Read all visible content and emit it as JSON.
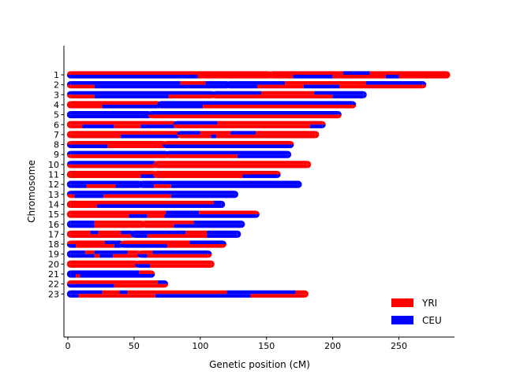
{
  "chart_data": {
    "type": "bar",
    "orientation": "horizontal",
    "xlabel": "Genetic position (cM)",
    "ylabel": "Chromosome",
    "xlim": [
      -3,
      292
    ],
    "xticks": [
      0,
      50,
      100,
      150,
      200,
      250
    ],
    "ylim": [
      0,
      26
    ],
    "grid": false,
    "legend_position": "lower-right",
    "colors": {
      "YRI": "#ff0000",
      "CEU": "#0000ff"
    },
    "series": [
      {
        "name": "YRI"
      },
      {
        "name": "CEU"
      }
    ],
    "chromosomes": [
      {
        "label": "1",
        "centromere": 153,
        "hapA": [
          [
            "YRI",
            2,
            153
          ],
          [
            "YRI",
            153,
            208
          ],
          [
            "CEU",
            208,
            228
          ],
          [
            "YRI",
            228,
            286
          ]
        ],
        "hapB": [
          [
            "CEU",
            2,
            98
          ],
          [
            "YRI",
            98,
            153
          ],
          [
            "YRI",
            153,
            170
          ],
          [
            "CEU",
            170,
            200
          ],
          [
            "YRI",
            200,
            240
          ],
          [
            "CEU",
            240,
            250
          ],
          [
            "YRI",
            250,
            286
          ]
        ]
      },
      {
        "label": "2",
        "centromere": 121,
        "hapA": [
          [
            "CEU",
            2,
            85
          ],
          [
            "YRI",
            85,
            104
          ],
          [
            "CEU",
            104,
            121
          ],
          [
            "CEU",
            121,
            164
          ],
          [
            "YRI",
            164,
            225
          ],
          [
            "CEU",
            225,
            268
          ]
        ],
        "hapB": [
          [
            "YRI",
            2,
            20
          ],
          [
            "CEU",
            20,
            121
          ],
          [
            "CEU",
            121,
            143
          ],
          [
            "YRI",
            143,
            178
          ],
          [
            "CEU",
            178,
            205
          ],
          [
            "YRI",
            205,
            268
          ]
        ]
      },
      {
        "label": "3",
        "centromere": 110,
        "hapA": [
          [
            "CEU",
            2,
            110
          ],
          [
            "CEU",
            110,
            146
          ],
          [
            "YRI",
            146,
            186
          ],
          [
            "CEU",
            186,
            223
          ]
        ],
        "hapB": [
          [
            "YRI",
            2,
            20
          ],
          [
            "CEU",
            20,
            76
          ],
          [
            "YRI",
            76,
            110
          ],
          [
            "YRI",
            110,
            200
          ],
          [
            "CEU",
            200,
            223
          ]
        ]
      },
      {
        "label": "4",
        "centromere": 69,
        "hapA": [
          [
            "YRI",
            2,
            69
          ],
          [
            "CEU",
            69,
            215
          ]
        ],
        "hapB": [
          [
            "YRI",
            2,
            26
          ],
          [
            "CEU",
            26,
            69
          ],
          [
            "CEU",
            69,
            102
          ],
          [
            "YRI",
            102,
            215
          ]
        ]
      },
      {
        "label": "5",
        "centromere": 62,
        "hapA": [
          [
            "CEU",
            2,
            62
          ],
          [
            "CEU",
            62,
            204
          ]
        ],
        "hapB": [
          [
            "CEU",
            2,
            62
          ],
          [
            "YRI",
            62,
            204
          ]
        ]
      },
      {
        "label": "6",
        "centromere": 81,
        "hapA": [
          [
            "YRI",
            2,
            81
          ],
          [
            "CEU",
            81,
            113
          ],
          [
            "YRI",
            113,
            192
          ]
        ],
        "hapB": [
          [
            "YRI",
            2,
            11
          ],
          [
            "CEU",
            11,
            35
          ],
          [
            "YRI",
            35,
            55
          ],
          [
            "CEU",
            55,
            81
          ],
          [
            "YRI",
            81,
            183
          ],
          [
            "CEU",
            183,
            192
          ]
        ]
      },
      {
        "label": "7",
        "centromere": 84,
        "hapA": [
          [
            "YRI",
            2,
            84
          ],
          [
            "CEU",
            84,
            100
          ],
          [
            "YRI",
            100,
            123
          ],
          [
            "CEU",
            123,
            142
          ],
          [
            "YRI",
            142,
            187
          ]
        ],
        "hapB": [
          [
            "YRI",
            2,
            40
          ],
          [
            "CEU",
            40,
            84
          ],
          [
            "YRI",
            84,
            108
          ],
          [
            "CEU",
            108,
            112
          ],
          [
            "YRI",
            112,
            187
          ]
        ]
      },
      {
        "label": "8",
        "centromere": 73,
        "hapA": [
          [
            "YRI",
            2,
            73
          ],
          [
            "YRI",
            73,
            168
          ]
        ],
        "hapB": [
          [
            "CEU",
            2,
            30
          ],
          [
            "YRI",
            30,
            73
          ],
          [
            "CEU",
            73,
            168
          ]
        ]
      },
      {
        "label": "9",
        "centromere": 75,
        "hapA": [
          [
            "CEU",
            2,
            75
          ],
          [
            "CEU",
            75,
            166
          ]
        ],
        "hapB": [
          [
            "YRI",
            2,
            75
          ],
          [
            "YRI",
            75,
            128
          ],
          [
            "CEU",
            128,
            166
          ]
        ]
      },
      {
        "label": "10",
        "centromere": 66,
        "hapA": [
          [
            "CEU",
            2,
            66
          ],
          [
            "YRI",
            66,
            181
          ]
        ],
        "hapB": [
          [
            "YRI",
            2,
            66
          ],
          [
            "YRI",
            66,
            181
          ]
        ]
      },
      {
        "label": "11",
        "centromere": 66,
        "hapA": [
          [
            "YRI",
            2,
            66
          ],
          [
            "YRI",
            66,
            158
          ]
        ],
        "hapB": [
          [
            "YRI",
            2,
            55
          ],
          [
            "CEU",
            55,
            66
          ],
          [
            "YRI",
            66,
            132
          ],
          [
            "CEU",
            132,
            158
          ]
        ]
      },
      {
        "label": "12",
        "centromere": 55,
        "hapA": [
          [
            "CEU",
            2,
            55
          ],
          [
            "CEU",
            55,
            174
          ]
        ],
        "hapB": [
          [
            "CEU",
            2,
            14
          ],
          [
            "YRI",
            14,
            36
          ],
          [
            "CEU",
            36,
            55
          ],
          [
            "CEU",
            55,
            65
          ],
          [
            "YRI",
            65,
            78
          ],
          [
            "CEU",
            78,
            174
          ]
        ]
      },
      {
        "label": "13",
        "centromere": 2,
        "hapA": [
          [
            "CEU",
            2,
            126
          ]
        ],
        "hapB": [
          [
            "YRI",
            2,
            5
          ],
          [
            "CEU",
            5,
            27
          ],
          [
            "YRI",
            27,
            78
          ],
          [
            "CEU",
            78,
            126
          ]
        ]
      },
      {
        "label": "14",
        "centromere": 2,
        "hapA": [
          [
            "YRI",
            2,
            110
          ],
          [
            "CEU",
            110,
            116
          ]
        ],
        "hapB": [
          [
            "YRI",
            2,
            22
          ],
          [
            "CEU",
            22,
            116
          ]
        ]
      },
      {
        "label": "15",
        "centromere": 2,
        "hapA": [
          [
            "YRI",
            2,
            74
          ],
          [
            "CEU",
            74,
            99
          ],
          [
            "YRI",
            99,
            142
          ]
        ],
        "hapB": [
          [
            "YRI",
            2,
            46
          ],
          [
            "CEU",
            46,
            60
          ],
          [
            "YRI",
            60,
            73
          ],
          [
            "CEU",
            73,
            142
          ]
        ]
      },
      {
        "label": "16",
        "centromere": 57,
        "hapA": [
          [
            "CEU",
            2,
            20
          ],
          [
            "YRI",
            20,
            57
          ],
          [
            "YRI",
            57,
            95
          ],
          [
            "CEU",
            95,
            131
          ]
        ],
        "hapB": [
          [
            "CEU",
            2,
            20
          ],
          [
            "YRI",
            20,
            57
          ],
          [
            "YRI",
            57,
            80
          ],
          [
            "CEU",
            80,
            131
          ]
        ]
      },
      {
        "label": "17",
        "centromere": 49,
        "hapA": [
          [
            "YRI",
            2,
            17
          ],
          [
            "CEU",
            17,
            23
          ],
          [
            "YRI",
            23,
            40
          ],
          [
            "CEU",
            40,
            49
          ],
          [
            "CEU",
            49,
            89
          ],
          [
            "YRI",
            89,
            105
          ],
          [
            "CEU",
            105,
            128
          ]
        ],
        "hapB": [
          [
            "YRI",
            2,
            49
          ],
          [
            "CEU",
            49,
            60
          ],
          [
            "YRI",
            60,
            105
          ],
          [
            "CEU",
            105,
            128
          ]
        ]
      },
      {
        "label": "18",
        "centromere": 41,
        "hapA": [
          [
            "YRI",
            2,
            28
          ],
          [
            "CEU",
            28,
            41
          ],
          [
            "YRI",
            41,
            92
          ],
          [
            "CEU",
            92,
            117
          ]
        ],
        "hapB": [
          [
            "CEU",
            2,
            6
          ],
          [
            "YRI",
            6,
            35
          ],
          [
            "CEU",
            35,
            41
          ],
          [
            "CEU",
            41,
            75
          ],
          [
            "YRI",
            75,
            117
          ]
        ]
      },
      {
        "label": "19",
        "centromere": 54,
        "hapA": [
          [
            "CEU",
            2,
            13
          ],
          [
            "YRI",
            13,
            20
          ],
          [
            "CEU",
            20,
            45
          ],
          [
            "YRI",
            45,
            54
          ],
          [
            "YRI",
            54,
            64
          ],
          [
            "CEU",
            64,
            106
          ]
        ],
        "hapB": [
          [
            "CEU",
            2,
            20
          ],
          [
            "YRI",
            20,
            24
          ],
          [
            "CEU",
            24,
            34
          ],
          [
            "YRI",
            34,
            54
          ],
          [
            "CEU",
            54,
            60
          ],
          [
            "YRI",
            60,
            106
          ]
        ]
      },
      {
        "label": "20",
        "centromere": 52,
        "hapA": [
          [
            "YRI",
            2,
            52
          ],
          [
            "YRI",
            52,
            108
          ]
        ],
        "hapB": [
          [
            "YRI",
            2,
            52
          ],
          [
            "CEU",
            52,
            62
          ],
          [
            "YRI",
            62,
            108
          ]
        ]
      },
      {
        "label": "21",
        "centromere": 2,
        "hapA": [
          [
            "CEU",
            2,
            54
          ],
          [
            "YRI",
            54,
            63
          ]
        ],
        "hapB": [
          [
            "CEU",
            2,
            6
          ],
          [
            "YRI",
            6,
            9
          ],
          [
            "CEU",
            9,
            63
          ]
        ]
      },
      {
        "label": "22",
        "centromere": 2,
        "hapA": [
          [
            "YRI",
            2,
            68
          ],
          [
            "CEU",
            68,
            73
          ]
        ],
        "hapB": [
          [
            "CEU",
            2,
            35
          ],
          [
            "YRI",
            35,
            73
          ]
        ]
      },
      {
        "label": "23",
        "centromere": 2,
        "hapA": [
          [
            "CEU",
            2,
            26
          ],
          [
            "YRI",
            26,
            39
          ],
          [
            "CEU",
            39,
            45
          ],
          [
            "YRI",
            45,
            120
          ],
          [
            "CEU",
            120,
            172
          ],
          [
            "YRI",
            172,
            179
          ]
        ],
        "hapB": [
          [
            "CEU",
            2,
            8
          ],
          [
            "YRI",
            8,
            66
          ],
          [
            "CEU",
            66,
            138
          ],
          [
            "YRI",
            138,
            179
          ]
        ]
      }
    ]
  }
}
